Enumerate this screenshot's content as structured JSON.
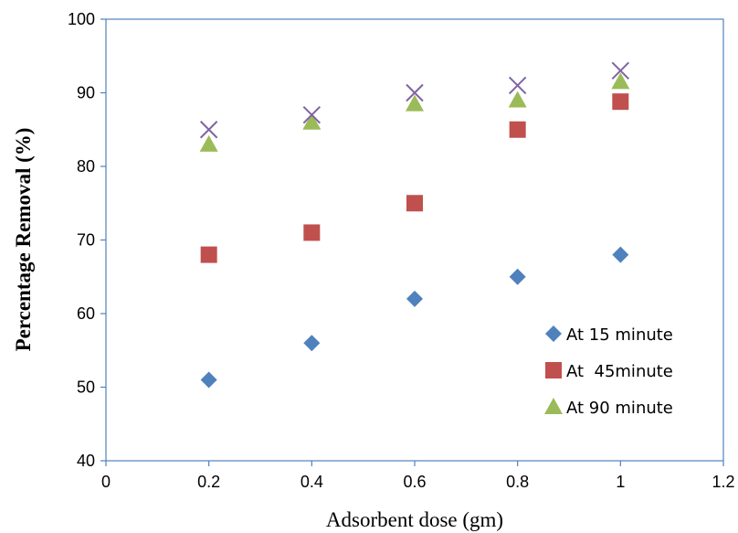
{
  "chart_data": {
    "type": "scatter",
    "title": "",
    "xlabel": "Adsorbent dose (gm)",
    "ylabel": "Percentage Removal (%)",
    "xlim": [
      0,
      1.2
    ],
    "ylim": [
      40,
      100
    ],
    "x_ticks": [
      0,
      0.2,
      0.4,
      0.6,
      0.8,
      1,
      1.2
    ],
    "x_tick_labels": [
      "0",
      "0.2",
      "0.4",
      "0.6",
      "0.8",
      "1",
      "1.2"
    ],
    "y_ticks": [
      40,
      50,
      60,
      70,
      80,
      90,
      100
    ],
    "y_tick_labels": [
      "40",
      "50",
      "60",
      "70",
      "80",
      "90",
      "100"
    ],
    "grid": false,
    "legend_position": "bottom-right",
    "series": [
      {
        "name": "At 15 minute",
        "marker": "diamond",
        "color": "#4f81bd",
        "x": [
          0.2,
          0.4,
          0.6,
          0.8,
          1.0
        ],
        "y": [
          51,
          56,
          62,
          65,
          68
        ]
      },
      {
        "name": "At  45minute",
        "marker": "square",
        "color": "#c0504d",
        "x": [
          0.2,
          0.4,
          0.6,
          0.8,
          1.0
        ],
        "y": [
          68,
          71,
          75,
          85,
          88.8
        ]
      },
      {
        "name": "At 90 minute",
        "marker": "triangle",
        "color": "#9bbb59",
        "x": [
          0.2,
          0.4,
          0.6,
          0.8,
          1.0
        ],
        "y": [
          83,
          86,
          88.5,
          89,
          91.5
        ]
      },
      {
        "marker": "cross",
        "color": "#8064a2",
        "x": [
          0.2,
          0.4,
          0.6,
          0.8,
          1.0
        ],
        "y": [
          85,
          87,
          90,
          91,
          93
        ]
      }
    ]
  }
}
